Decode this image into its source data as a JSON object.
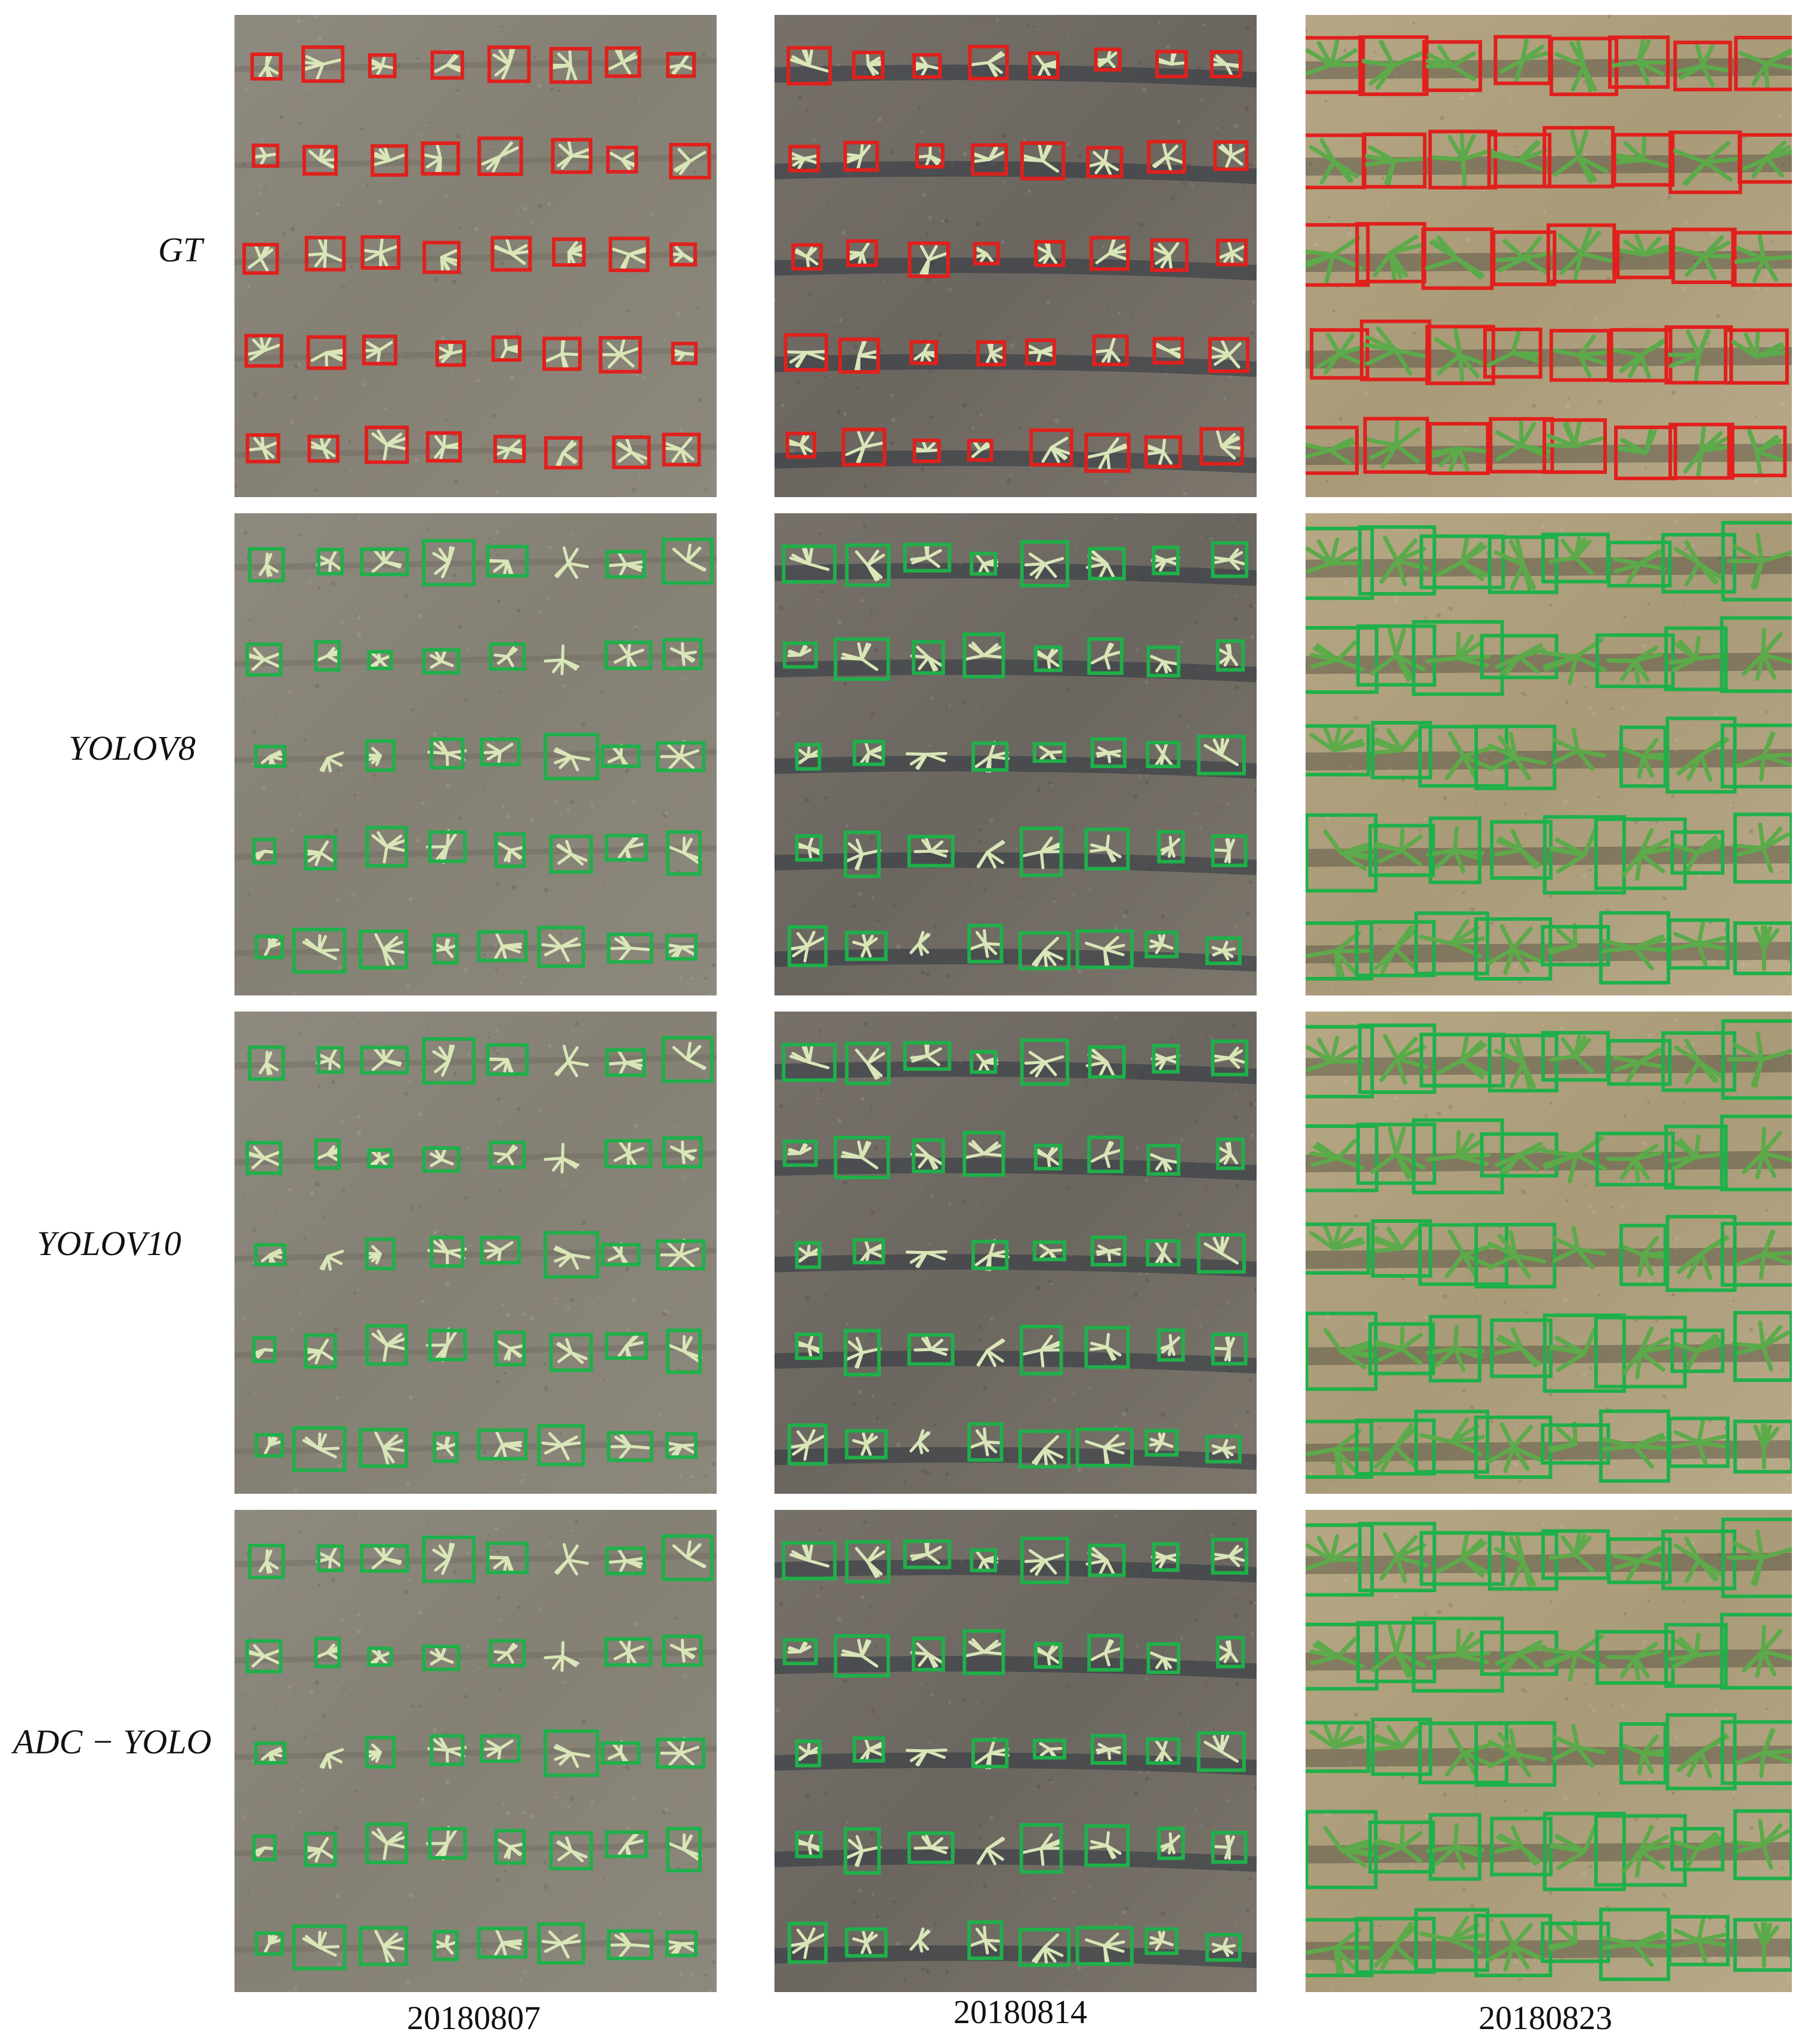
{
  "rows": [
    {
      "label": "GT",
      "box_color": "#e0201c"
    },
    {
      "label": "YOLOV8",
      "box_color": "#1fb04a"
    },
    {
      "label": "YOLOV10",
      "box_color": "#1fb04a"
    },
    {
      "label": "ADC − YOLO",
      "box_color": "#1fb04a"
    }
  ],
  "columns": [
    {
      "label": "20180807",
      "scene": "sparse-seedlings-grey-soil"
    },
    {
      "label": "20180814",
      "scene": "seedlings-with-shadow-rows"
    },
    {
      "label": "20180823",
      "scene": "dense-green-maize-rows"
    }
  ],
  "colors": {
    "gt_box": "#e0201c",
    "pred_box": "#1fb04a",
    "soil_col0": "#8a8579",
    "soil_col1": "#716b64",
    "soil_col2": "#b0a280",
    "plant_light": "#d8e6b8",
    "plant_green": "#5caa4a",
    "shadow": "#2e3440"
  }
}
